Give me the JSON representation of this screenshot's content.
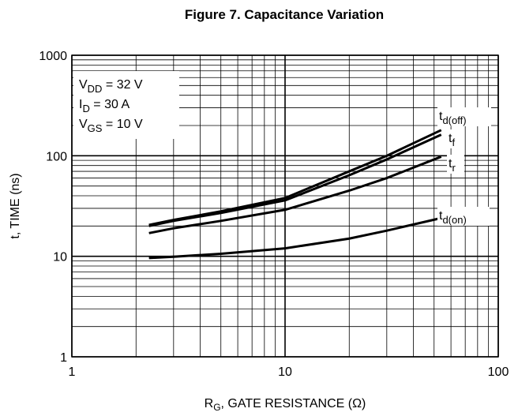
{
  "chart_data": {
    "type": "line",
    "title": "Figure 7. Capacitance Variation",
    "x_label": {
      "base": "R",
      "sub": "G",
      "rest": ", GATE RESISTANCE (Ω)"
    },
    "y_label": "t, TIME (ns)",
    "annotations": [
      {
        "base": "V",
        "sub": "DD",
        "rest": " = 32 V"
      },
      {
        "base": "I",
        "sub": "D",
        "rest": " = 30 A"
      },
      {
        "base": "V",
        "sub": "GS",
        "rest": " = 10 V"
      }
    ],
    "x": [
      2.3,
      3,
      5,
      10,
      20,
      30,
      54
    ],
    "series": [
      {
        "name": {
          "base": "t",
          "sub": "d(off)"
        },
        "color": "#000000",
        "values": [
          20.5,
          23,
          28,
          38,
          70,
          100,
          180
        ]
      },
      {
        "name": {
          "base": "t",
          "sub": "f"
        },
        "color": "#000000",
        "values": [
          20,
          22.5,
          27,
          36,
          64,
          92,
          162
        ]
      },
      {
        "name": {
          "base": "t",
          "sub": "r"
        },
        "color": "#000000",
        "values": [
          17,
          19,
          22.5,
          29,
          45,
          60,
          98
        ]
      },
      {
        "name": {
          "base": "t",
          "sub": "d(on)"
        },
        "color": "#000000",
        "values": [
          9.6,
          9.9,
          10.6,
          12,
          15,
          18,
          24
        ]
      }
    ],
    "xlim": [
      1,
      100
    ],
    "ylim": [
      1,
      1000
    ],
    "xticks": [
      1,
      10,
      100
    ],
    "yticks": [
      1,
      10,
      100,
      1000
    ],
    "xscale": "log",
    "yscale": "log",
    "grid": true
  }
}
